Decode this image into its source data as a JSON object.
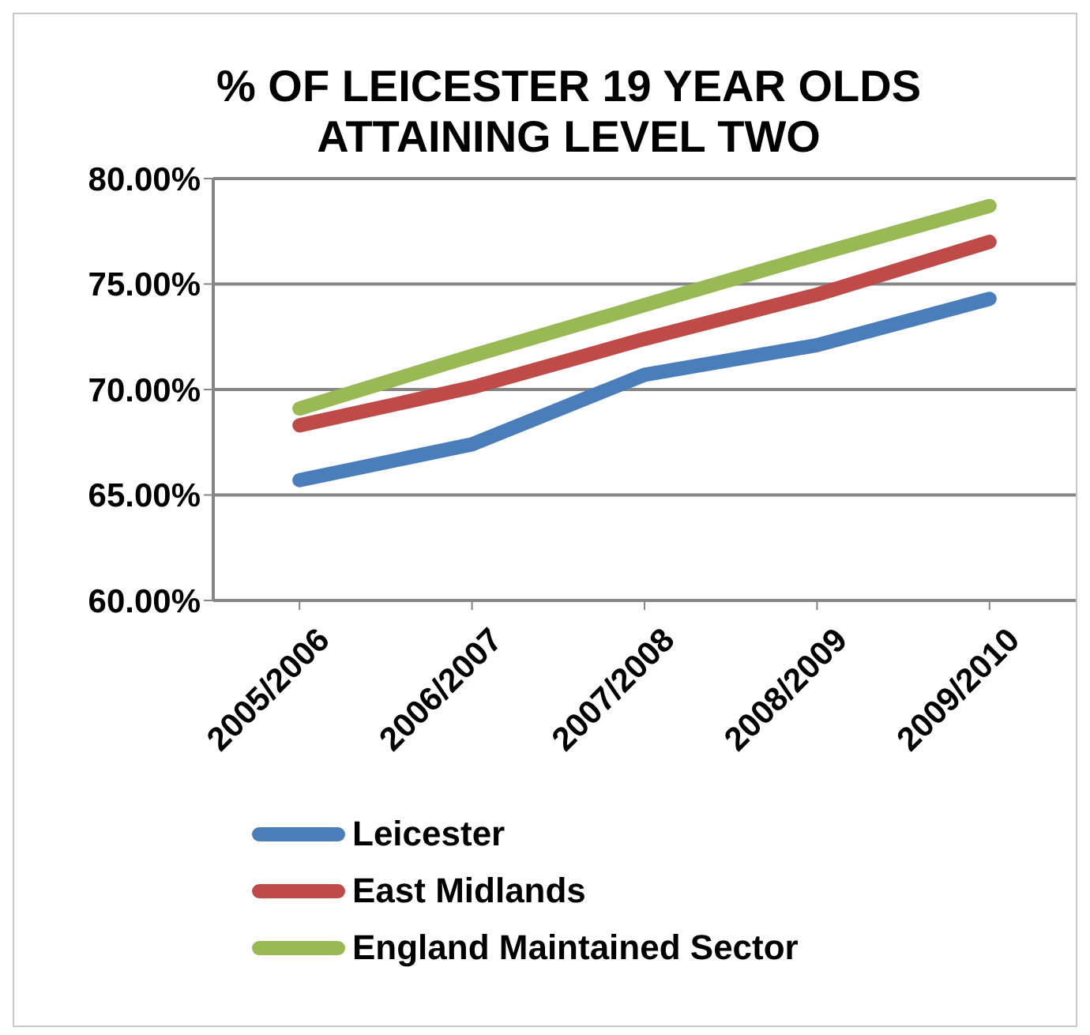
{
  "chart_data": {
    "type": "line",
    "title": "% OF LEICESTER 19 YEAR OLDS ATTAINING LEVEL TWO",
    "categories": [
      "2005/2006",
      "2006/2007",
      "2007/2008",
      "2008/2009",
      "2009/2010"
    ],
    "series": [
      {
        "name": "Leicester",
        "color": "#4a7ebb",
        "values": [
          65.7,
          67.4,
          70.7,
          72.1,
          74.3
        ]
      },
      {
        "name": "East Midlands",
        "color": "#be4b48",
        "values": [
          68.3,
          70.1,
          72.4,
          74.5,
          77.0
        ]
      },
      {
        "name": "England Maintained Sector",
        "color": "#98b954",
        "values": [
          69.1,
          71.6,
          74.0,
          76.4,
          78.7
        ]
      }
    ],
    "ylim": [
      60,
      80
    ],
    "yticks": [
      {
        "value": 60,
        "label": "60.00%"
      },
      {
        "value": 65,
        "label": "65.00%"
      },
      {
        "value": 70,
        "label": "70.00%"
      },
      {
        "value": 75,
        "label": "75.00%"
      },
      {
        "value": 80,
        "label": "80.00%"
      }
    ],
    "grid": "y",
    "legend": "bottom",
    "marker": "none",
    "line_style": "solid"
  }
}
